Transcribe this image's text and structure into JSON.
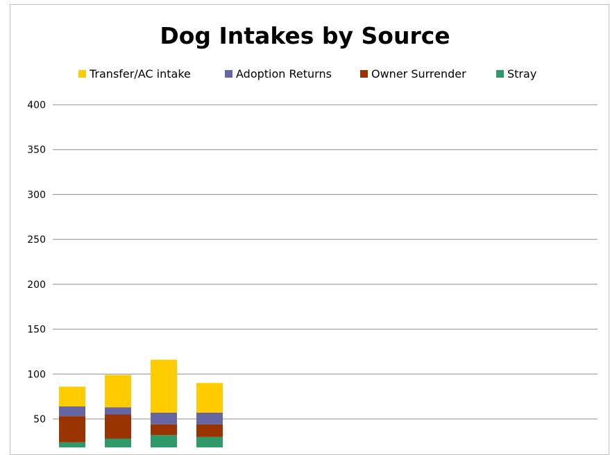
{
  "chart_data": {
    "type": "bar",
    "stacked": true,
    "title": "Dog Intakes by Source",
    "legend_position": "top",
    "grid": true,
    "ylim": [
      25,
      400
    ],
    "yticks": [
      50,
      100,
      150,
      200,
      250,
      300,
      350,
      400
    ],
    "categories": [
      "",
      "",
      "",
      ""
    ],
    "series": [
      {
        "name": "Stray",
        "color": "#2e9a6a",
        "values": [
          24,
          28,
          32,
          30
        ]
      },
      {
        "name": "Owner Surrender",
        "color": "#993300",
        "values": [
          29,
          27,
          12,
          14
        ]
      },
      {
        "name": "Adoption Returns",
        "color": "#6666a3",
        "values": [
          11,
          8,
          13,
          13
        ]
      },
      {
        "name": "Transfer/AC intake",
        "color": "#ffcc00",
        "values": [
          22,
          36,
          59,
          33
        ]
      }
    ]
  },
  "legend": {
    "items": [
      {
        "label": "Transfer/AC intake",
        "color": "#ffcc00"
      },
      {
        "label": "Adoption Returns",
        "color": "#6666a3"
      },
      {
        "label": "Owner Surrender",
        "color": "#993300"
      },
      {
        "label": "Stray",
        "color": "#2e9a6a"
      }
    ]
  }
}
